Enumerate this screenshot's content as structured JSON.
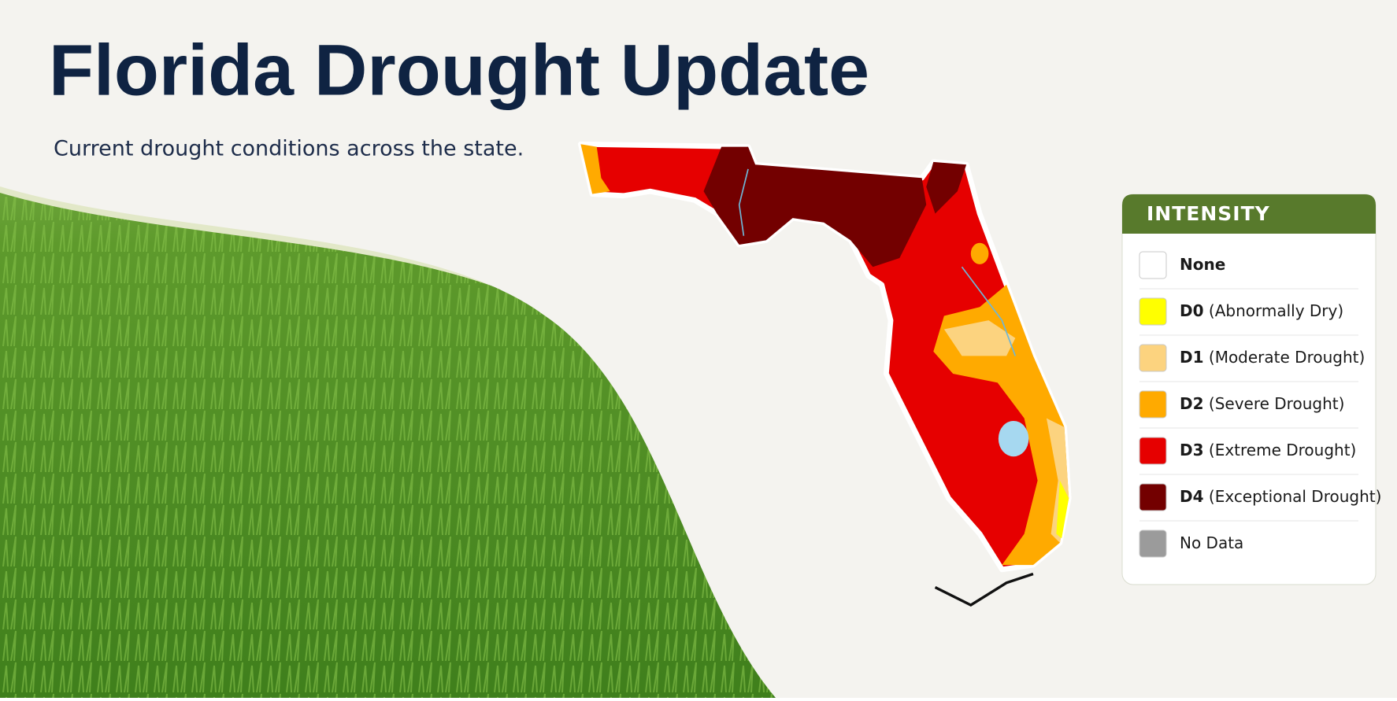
{
  "header": {
    "title": "Florida Drought Update",
    "subtitle": "Current drought conditions across the state."
  },
  "legend": {
    "title": "INTENSITY",
    "items": [
      {
        "code": "None",
        "color": "#ffffff"
      },
      {
        "code": "D0",
        "description": "(Abnormally Dry)",
        "color": "#ffff00"
      },
      {
        "code": "D1",
        "description": "(Moderate Drought)",
        "color": "#fcd37f"
      },
      {
        "code": "D2",
        "description": "(Severe Drought)",
        "color": "#ffaa00"
      },
      {
        "code": "D3",
        "description": "(Extreme Drought)",
        "color": "#e60000"
      },
      {
        "code": "D4",
        "description": "(Exceptional Drought)",
        "color": "#730000"
      },
      {
        "description": "No Data",
        "color": "#9b9b9b"
      }
    ]
  }
}
